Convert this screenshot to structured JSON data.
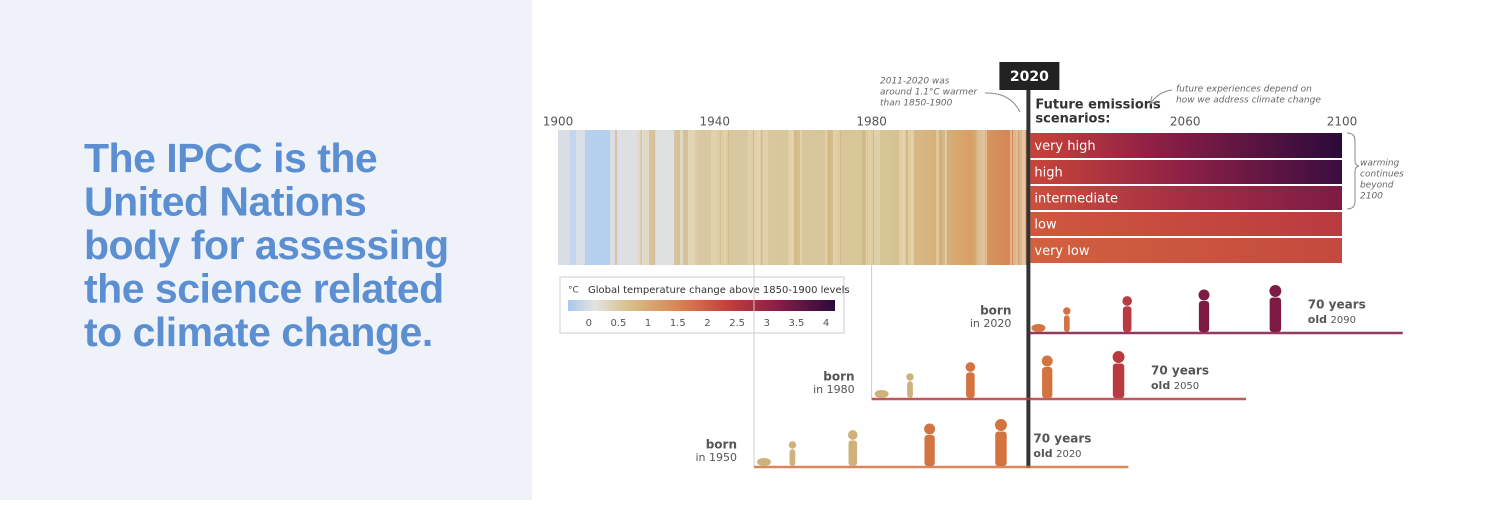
{
  "headline": [
    "The IPCC is the",
    "United Nations",
    "body for assessing",
    "the science related",
    "to climate change."
  ],
  "timeline": {
    "xlim": [
      1900,
      2100
    ],
    "xticks": [
      1900,
      1940,
      1980,
      2060,
      2100
    ],
    "current_year": 2020,
    "past_note": [
      "2011-2020 was",
      "around 1.1°C warmer",
      "than 1850-1900"
    ],
    "scenarios_title": [
      "Future emissions",
      "scenarios:"
    ],
    "future_note": [
      "future experiences depend on",
      "how we address climate change"
    ],
    "scenarios": [
      "very high",
      "high",
      "intermediate",
      "low",
      "very low"
    ],
    "beyond_note": [
      "warming",
      "continues",
      "beyond",
      "2100"
    ]
  },
  "legend": {
    "unit": "°C",
    "title": "Global temperature change above 1850-1900 levels",
    "range": [
      -0.35,
      4.15
    ],
    "ticks": [
      0,
      0.5,
      1,
      1.5,
      2,
      2.5,
      3,
      3.5,
      4
    ]
  },
  "generations": [
    {
      "born_word": "born",
      "in_word": "in",
      "born_year": 2020,
      "age_label": "70 years",
      "old_word": "old",
      "end_year": 2090
    },
    {
      "born_word": "born",
      "in_word": "in",
      "born_year": 1980,
      "age_label": "70 years",
      "old_word": "old",
      "end_year": 2050
    },
    {
      "born_word": "born",
      "in_word": "in",
      "born_year": 1950,
      "age_label": "70 years",
      "old_word": "old",
      "end_year": 2020
    }
  ]
}
